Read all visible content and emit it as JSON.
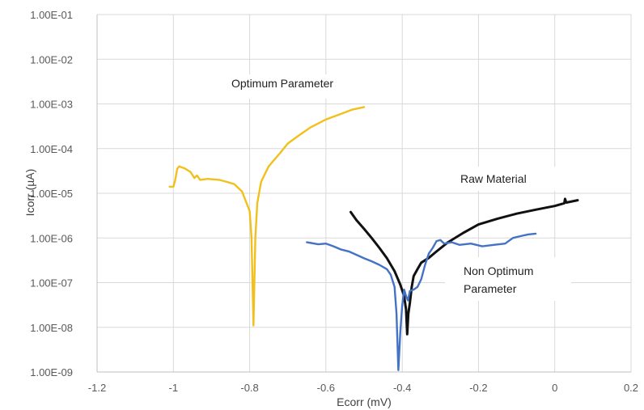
{
  "chart_data": {
    "type": "line",
    "xlabel": "Ecorr (mV)",
    "ylabel": "Icorr (µA)",
    "xlim": [
      -1.2,
      0.2
    ],
    "ylim_log10": [
      -9,
      -1
    ],
    "y_scale": "log",
    "grid": "vertical and horizontal",
    "x_ticks": [
      "-1.2",
      "-1",
      "-0.8",
      "-0.6",
      "-0.4",
      "-0.2",
      "0",
      "0.2"
    ],
    "y_ticks": [
      "1.00E-09",
      "1.00E-08",
      "1.00E-07",
      "1.00E-06",
      "1.00E-05",
      "1.00E-04",
      "1.00E-03",
      "1.00E-02",
      "1.00E-01"
    ],
    "annotations": {
      "optimum": "Optimum Parameter",
      "raw": "Raw Material",
      "non_optimum_line1": "Non Optimum",
      "non_optimum_line2": "Parameter"
    },
    "series": [
      {
        "label_ref": "Optimum Parameter",
        "color": "#f2c01c",
        "points": [
          [
            -1.01,
            1.4e-05
          ],
          [
            -1.0,
            1.4e-05
          ],
          [
            -0.995,
            2e-05
          ],
          [
            -0.99,
            3.5e-05
          ],
          [
            -0.985,
            4e-05
          ],
          [
            -0.97,
            3.6e-05
          ],
          [
            -0.955,
            3e-05
          ],
          [
            -0.945,
            2.2e-05
          ],
          [
            -0.938,
            2.5e-05
          ],
          [
            -0.93,
            2e-05
          ],
          [
            -0.91,
            2.1e-05
          ],
          [
            -0.88,
            2e-05
          ],
          [
            -0.86,
            1.8e-05
          ],
          [
            -0.84,
            1.6e-05
          ],
          [
            -0.82,
            1.1e-05
          ],
          [
            -0.8,
            4e-06
          ],
          [
            -0.795,
            1e-06
          ],
          [
            -0.79,
            1.1e-08
          ],
          [
            -0.785,
            1e-06
          ],
          [
            -0.78,
            6e-06
          ],
          [
            -0.77,
            1.8e-05
          ],
          [
            -0.75,
            4e-05
          ],
          [
            -0.72,
            8e-05
          ],
          [
            -0.7,
            0.00013
          ],
          [
            -0.67,
            0.0002
          ],
          [
            -0.64,
            0.0003
          ],
          [
            -0.6,
            0.00045
          ],
          [
            -0.56,
            0.0006
          ],
          [
            -0.53,
            0.00075
          ],
          [
            -0.5,
            0.00085
          ]
        ]
      },
      {
        "label_ref": "Raw Material",
        "color": "#111111",
        "points": [
          [
            -0.535,
            3.8e-06
          ],
          [
            -0.52,
            2.5e-06
          ],
          [
            -0.5,
            1.6e-06
          ],
          [
            -0.48,
            1e-06
          ],
          [
            -0.46,
            6e-07
          ],
          [
            -0.44,
            3.5e-07
          ],
          [
            -0.42,
            1.8e-07
          ],
          [
            -0.405,
            9e-08
          ],
          [
            -0.395,
            5e-08
          ],
          [
            -0.39,
            2.5e-08
          ],
          [
            -0.387,
            7e-09
          ],
          [
            -0.384,
            2e-08
          ],
          [
            -0.38,
            3.5e-08
          ],
          [
            -0.375,
            8e-08
          ],
          [
            -0.37,
            1.4e-07
          ],
          [
            -0.36,
            2e-07
          ],
          [
            -0.35,
            2.8e-07
          ],
          [
            -0.33,
            3.6e-07
          ],
          [
            -0.31,
            5e-07
          ],
          [
            -0.28,
            8e-07
          ],
          [
            -0.24,
            1.3e-06
          ],
          [
            -0.2,
            2e-06
          ],
          [
            -0.15,
            2.7e-06
          ],
          [
            -0.1,
            3.5e-06
          ],
          [
            -0.05,
            4.3e-06
          ],
          [
            0.0,
            5.2e-06
          ],
          [
            0.025,
            6e-06
          ],
          [
            0.027,
            7.5e-06
          ],
          [
            0.03,
            6.2e-06
          ],
          [
            0.06,
            7e-06
          ]
        ]
      },
      {
        "label_ref": "Non Optimum Parameter",
        "color": "#4472c4",
        "points": [
          [
            -0.65,
            8e-07
          ],
          [
            -0.62,
            7.2e-07
          ],
          [
            -0.6,
            7.5e-07
          ],
          [
            -0.58,
            6.5e-07
          ],
          [
            -0.56,
            5.5e-07
          ],
          [
            -0.54,
            5e-07
          ],
          [
            -0.52,
            4.2e-07
          ],
          [
            -0.5,
            3.5e-07
          ],
          [
            -0.48,
            3e-07
          ],
          [
            -0.46,
            2.5e-07
          ],
          [
            -0.44,
            2e-07
          ],
          [
            -0.43,
            1.5e-07
          ],
          [
            -0.42,
            8e-08
          ],
          [
            -0.415,
            2e-08
          ],
          [
            -0.41,
            1.1e-09
          ],
          [
            -0.405,
            8e-09
          ],
          [
            -0.4,
            3e-08
          ],
          [
            -0.395,
            7e-08
          ],
          [
            -0.39,
            5e-08
          ],
          [
            -0.385,
            4e-08
          ],
          [
            -0.38,
            6.5e-08
          ],
          [
            -0.37,
            7e-08
          ],
          [
            -0.36,
            8e-08
          ],
          [
            -0.35,
            1.2e-07
          ],
          [
            -0.34,
            2.5e-07
          ],
          [
            -0.33,
            4.5e-07
          ],
          [
            -0.32,
            6e-07
          ],
          [
            -0.31,
            8.5e-07
          ],
          [
            -0.3,
            9e-07
          ],
          [
            -0.29,
            7.5e-07
          ],
          [
            -0.27,
            8e-07
          ],
          [
            -0.25,
            7e-07
          ],
          [
            -0.22,
            7.5e-07
          ],
          [
            -0.19,
            6.5e-07
          ],
          [
            -0.16,
            7e-07
          ],
          [
            -0.13,
            7.5e-07
          ],
          [
            -0.11,
            1e-06
          ],
          [
            -0.09,
            1.1e-06
          ],
          [
            -0.07,
            1.2e-06
          ],
          [
            -0.05,
            1.25e-06
          ]
        ]
      }
    ]
  }
}
